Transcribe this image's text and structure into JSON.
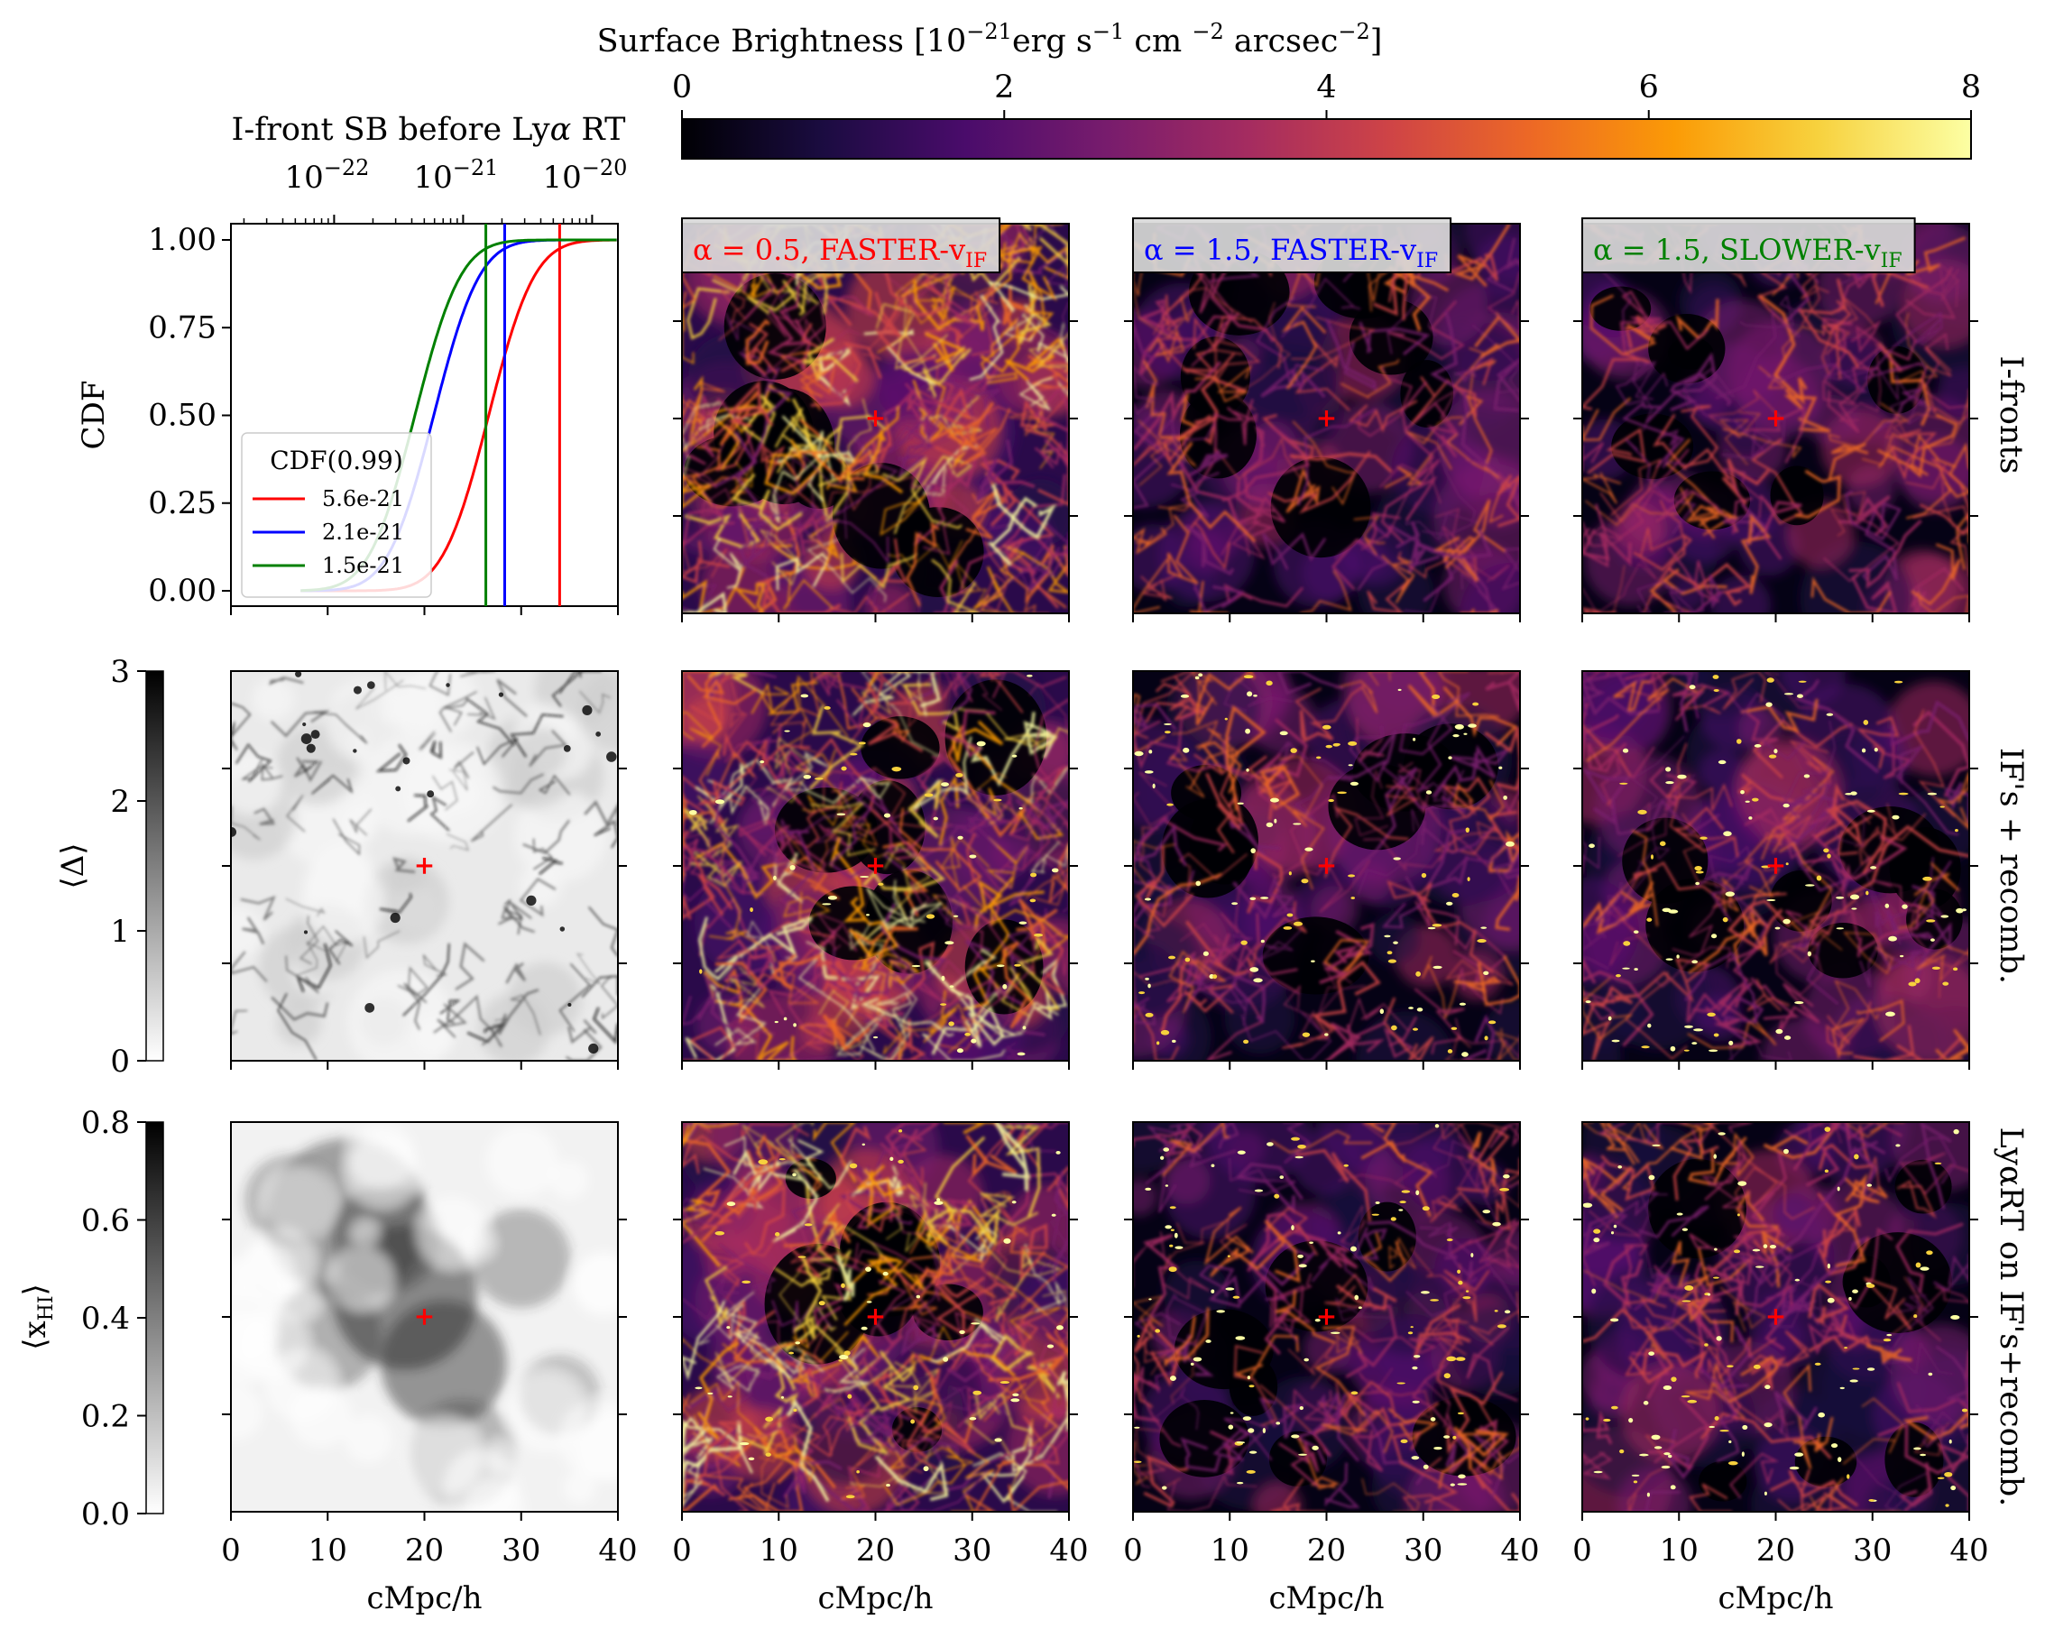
{
  "figure": {
    "colorbar": {
      "label_main": "Surface Brightness [10",
      "label_exp1": "−21",
      "label_mid": "erg s",
      "label_exp2": "−1",
      "label_cm": " cm ",
      "label_exp3": "−2",
      "label_arc": " arcsec",
      "label_exp4": "−2",
      "label_end": "]",
      "ticks": [
        "0",
        "2",
        "4",
        "6",
        "8"
      ],
      "range": [
        0,
        8
      ],
      "colormap": "inferno",
      "colors": [
        "#000004",
        "#1b0c41",
        "#4a0c6b",
        "#781c6d",
        "#a52c60",
        "#cf4446",
        "#ed6925",
        "#fb9b06",
        "#f7d13d",
        "#fcffa4"
      ]
    },
    "cdf_panel": {
      "top_axis_label_pre": "I-front SB before Ly",
      "top_axis_label_alpha": "α",
      "top_axis_label_post": " RT",
      "top_ticks": [
        {
          "base": "10",
          "exp": "−22"
        },
        {
          "base": "10",
          "exp": "−21"
        },
        {
          "base": "10",
          "exp": "−20"
        }
      ],
      "ylabel": "CDF",
      "yticks": [
        "0.00",
        "0.25",
        "0.50",
        "0.75",
        "1.00"
      ],
      "legend_title": "CDF(0.99)",
      "series": [
        {
          "label": "5.6e-21",
          "color": "#ff0000",
          "threshold": 5.6e-21
        },
        {
          "label": "2.1e-21",
          "color": "#0000ff",
          "threshold": 2.1e-21
        },
        {
          "label": "1.5e-21",
          "color": "#008000",
          "threshold": 1.5e-21
        }
      ]
    },
    "column_titles": [
      {
        "prefix": "α = 0.5, FASTER-v",
        "sub": "IF",
        "color": "#ff0000"
      },
      {
        "prefix": "α = 1.5, FASTER-v",
        "sub": "IF",
        "color": "#0000ff"
      },
      {
        "prefix": "α = 1.5, SLOWER-v",
        "sub": "IF",
        "color": "#008000"
      }
    ],
    "row_labels": [
      "I-fronts",
      "IF's + recomb.",
      "LyαRT on IF's+recomb."
    ],
    "delta_colorbar": {
      "label": "⟨Δ⟩",
      "ticks": [
        "0",
        "1",
        "2",
        "3"
      ]
    },
    "xhi_colorbar": {
      "label_pre": "⟨x",
      "label_sub": "HI",
      "label_post": "⟩",
      "ticks": [
        "0.0",
        "0.2",
        "0.4",
        "0.6",
        "0.8"
      ]
    },
    "x_axis": {
      "ticks": [
        "0",
        "10",
        "20",
        "30",
        "40"
      ],
      "label": "cMpc/h"
    },
    "marker": {
      "symbol": "+",
      "color": "#ff0000",
      "x": 20,
      "y": 20
    }
  }
}
